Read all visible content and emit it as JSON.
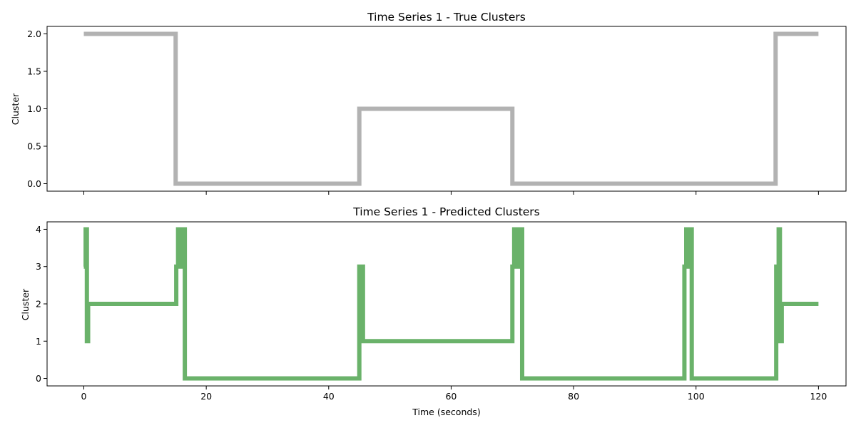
{
  "chart_data": [
    {
      "type": "line",
      "title": "Time Series 1 - True Clusters",
      "xlabel": "",
      "ylabel": "Cluster",
      "xlim": [
        -6,
        124.5
      ],
      "ylim": [
        -0.1,
        2.1
      ],
      "xticks": [
        0,
        20,
        40,
        60,
        80,
        100,
        120
      ],
      "show_xtick_labels": false,
      "yticks": [
        0.0,
        0.5,
        1.0,
        1.5,
        2.0
      ],
      "ytick_labels": [
        "0.0",
        "0.5",
        "1.0",
        "1.5",
        "2.0"
      ],
      "grid": false,
      "color": "#b2b2b2",
      "series": [
        {
          "step": true,
          "points": [
            [
              0,
              2
            ],
            [
              15,
              2
            ],
            [
              15,
              0
            ],
            [
              45,
              0
            ],
            [
              45,
              1
            ],
            [
              70,
              1
            ],
            [
              70,
              0
            ],
            [
              113,
              0
            ],
            [
              113,
              2
            ],
            [
              120,
              2
            ]
          ]
        }
      ]
    },
    {
      "type": "line",
      "title": "Time Series 1 - Predicted Clusters",
      "xlabel": "Time (seconds)",
      "ylabel": "Cluster",
      "xlim": [
        -6,
        124.5
      ],
      "ylim": [
        -0.2,
        4.2
      ],
      "xticks": [
        0,
        20,
        40,
        60,
        80,
        100,
        120
      ],
      "show_xtick_labels": true,
      "xtick_labels": [
        "0",
        "20",
        "40",
        "60",
        "80",
        "100",
        "120"
      ],
      "yticks": [
        0,
        1,
        2,
        3,
        4
      ],
      "ytick_labels": [
        "0",
        "1",
        "2",
        "3",
        "4"
      ],
      "grid": false,
      "color": "#6ab26a",
      "series": [
        {
          "step": true,
          "points": [
            [
              0,
              3
            ],
            [
              0.3,
              3
            ],
            [
              0.3,
              4
            ],
            [
              0.5,
              4
            ],
            [
              0.5,
              1
            ],
            [
              0.7,
              1
            ],
            [
              0.7,
              2
            ],
            [
              15.1,
              2
            ],
            [
              15.1,
              3
            ],
            [
              15.4,
              3
            ],
            [
              15.4,
              4
            ],
            [
              15.8,
              4
            ],
            [
              15.8,
              3
            ],
            [
              16.0,
              3
            ],
            [
              16.0,
              4
            ],
            [
              16.5,
              4
            ],
            [
              16.5,
              0
            ],
            [
              45.0,
              0
            ],
            [
              45.0,
              3
            ],
            [
              45.2,
              3
            ],
            [
              45.2,
              1
            ],
            [
              45.4,
              1
            ],
            [
              45.4,
              3
            ],
            [
              45.6,
              3
            ],
            [
              45.6,
              1
            ],
            [
              70.0,
              1
            ],
            [
              70.0,
              3
            ],
            [
              70.3,
              3
            ],
            [
              70.3,
              4
            ],
            [
              71.0,
              4
            ],
            [
              71.0,
              3
            ],
            [
              71.2,
              3
            ],
            [
              71.2,
              4
            ],
            [
              71.6,
              4
            ],
            [
              71.6,
              0
            ],
            [
              98.1,
              0
            ],
            [
              98.1,
              3
            ],
            [
              98.4,
              3
            ],
            [
              98.4,
              4
            ],
            [
              98.8,
              4
            ],
            [
              98.8,
              3
            ],
            [
              99.0,
              3
            ],
            [
              99.0,
              4
            ],
            [
              99.3,
              4
            ],
            [
              99.3,
              0
            ],
            [
              113.1,
              0
            ],
            [
              113.1,
              3
            ],
            [
              113.3,
              3
            ],
            [
              113.3,
              1
            ],
            [
              113.5,
              1
            ],
            [
              113.5,
              4
            ],
            [
              113.7,
              4
            ],
            [
              113.7,
              1
            ],
            [
              114.0,
              1
            ],
            [
              114.0,
              2
            ],
            [
              120,
              2
            ]
          ]
        }
      ]
    }
  ]
}
